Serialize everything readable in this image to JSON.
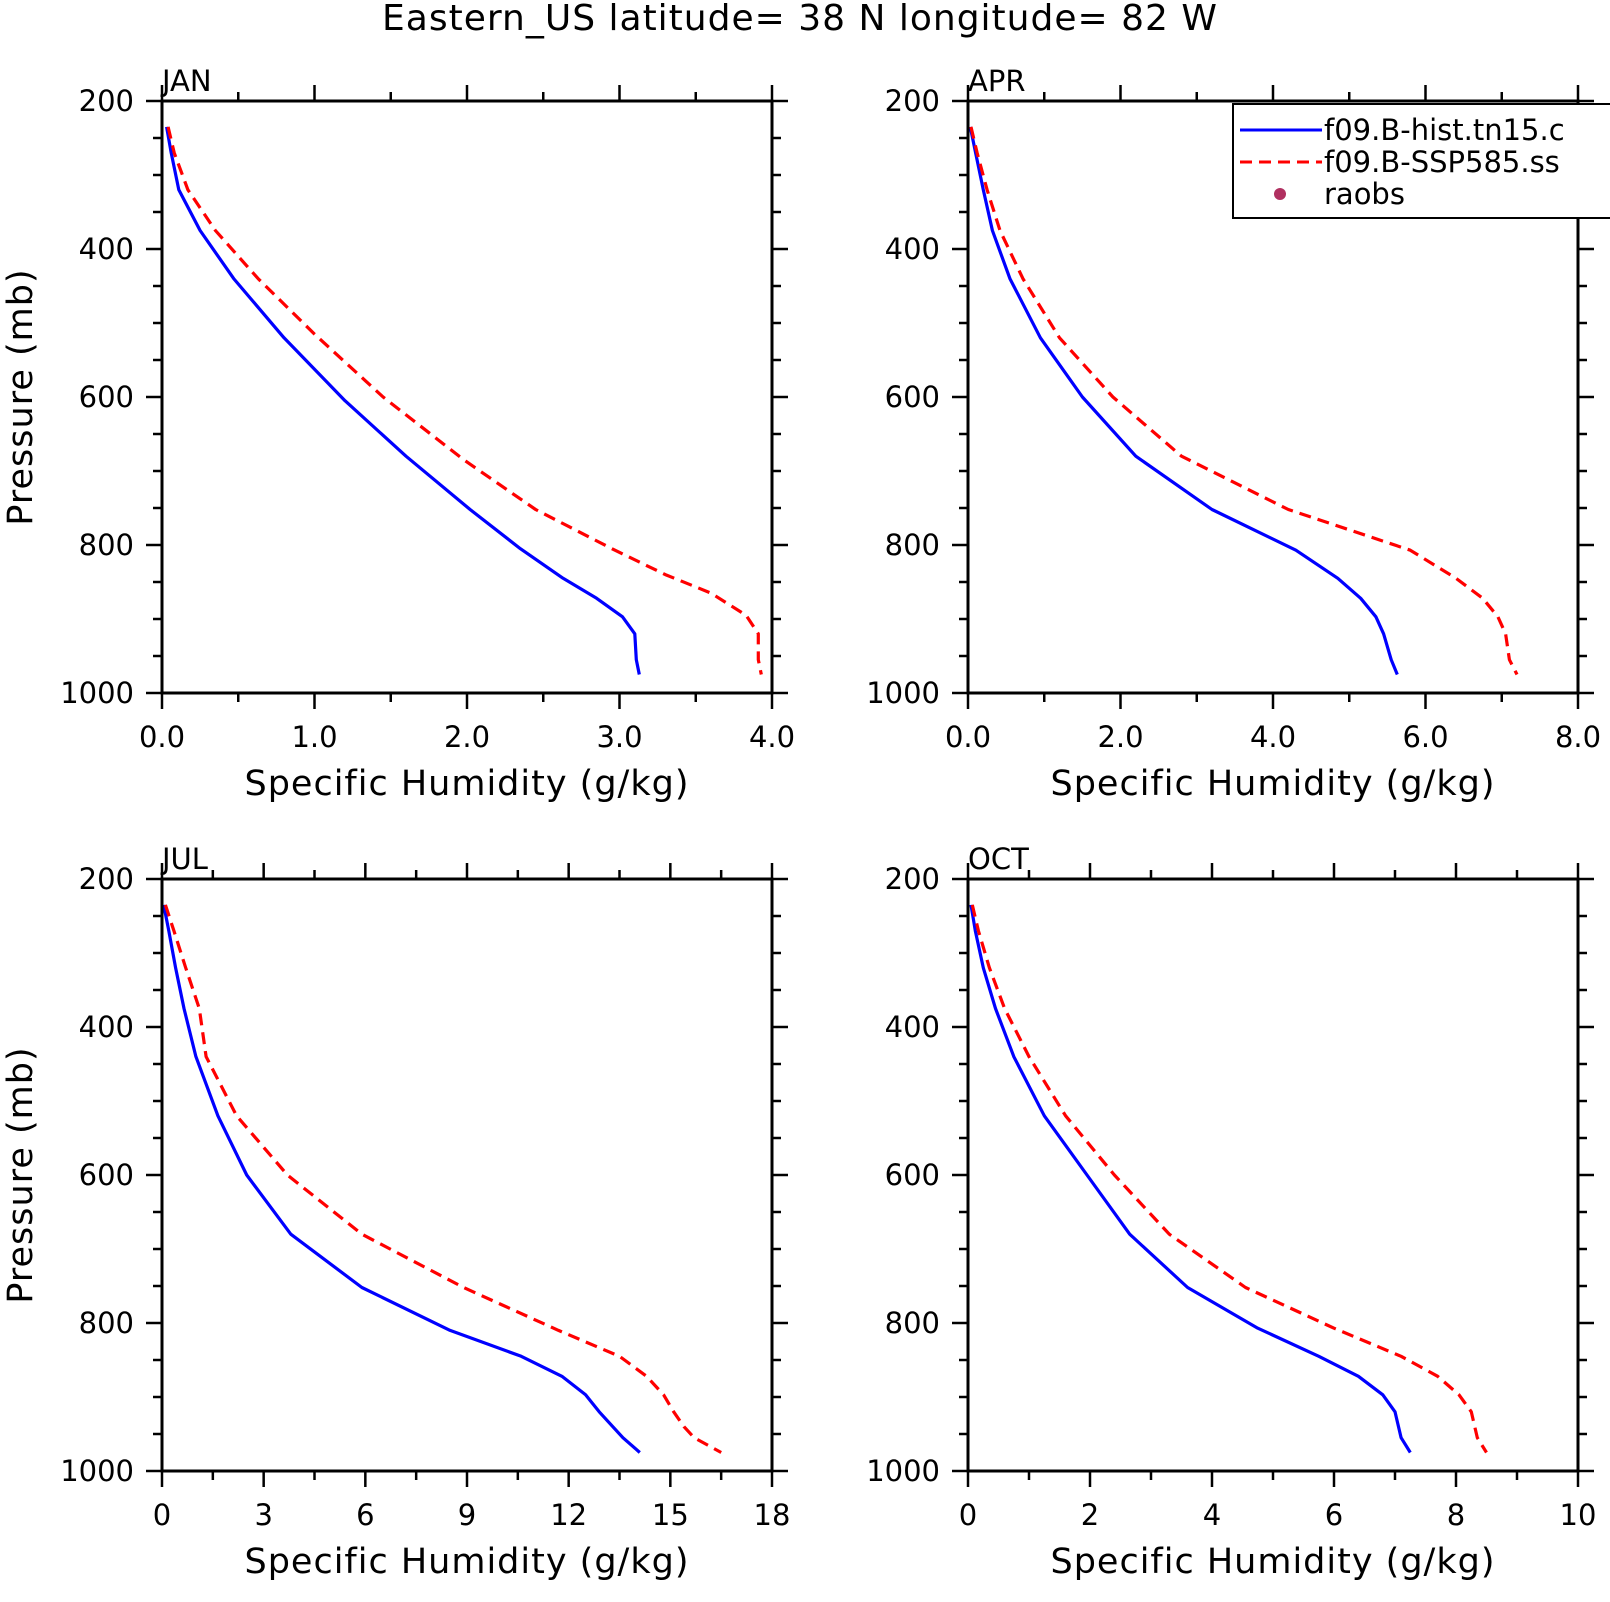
{
  "figure_title": "Eastern_US  latitude= 38 N longitude= 82 W",
  "legend": {
    "entries": [
      {
        "label": "f09.B-hist.tn15.c",
        "style": "solid",
        "color": "#0000ff"
      },
      {
        "label": "f09.B-SSP585.ss",
        "style": "dashed",
        "color": "#ff0000"
      },
      {
        "label": "raobs",
        "style": "marker",
        "color": "#b03060"
      }
    ]
  },
  "chart_data": [
    {
      "type": "line",
      "title": "JAN",
      "xlabel": "Specific Humidity (g/kg)",
      "ylabel": "Pressure (mb)",
      "xlim": [
        0,
        4
      ],
      "ylim": [
        1000,
        200
      ],
      "y_inverted": true,
      "xticks": [
        0,
        1,
        2,
        3,
        4
      ],
      "xtick_labels": [
        "0.0",
        "1.0",
        "2.0",
        "3.0",
        "4.0"
      ],
      "yticks": [
        200,
        400,
        600,
        800,
        1000
      ],
      "ytick_labels": [
        "200",
        "400",
        "600",
        "800",
        "1000"
      ],
      "series": [
        {
          "name": "f09.B-hist.tn15.c",
          "color": "#0000ff",
          "style": "solid",
          "x": [
            0.03,
            0.06,
            0.11,
            0.25,
            0.47,
            0.8,
            1.2,
            1.6,
            2.02,
            2.35,
            2.63,
            2.85,
            3.02,
            3.1,
            3.11,
            3.13
          ],
          "y": [
            235,
            270,
            320,
            375,
            440,
            520,
            605,
            680,
            752,
            805,
            845,
            872,
            897,
            920,
            955,
            975
          ]
        },
        {
          "name": "f09.B-SSP585.ss",
          "color": "#ff0000",
          "style": "dashed",
          "x": [
            0.04,
            0.08,
            0.17,
            0.35,
            0.63,
            1.0,
            1.45,
            1.98,
            2.45,
            2.95,
            3.3,
            3.6,
            3.83,
            3.91,
            3.91,
            3.93
          ],
          "y": [
            235,
            270,
            320,
            375,
            440,
            515,
            600,
            685,
            752,
            805,
            840,
            865,
            895,
            920,
            955,
            975
          ]
        }
      ]
    },
    {
      "type": "line",
      "title": "APR",
      "xlabel": "Specific Humidity (g/kg)",
      "ylabel": "",
      "xlim": [
        0,
        8
      ],
      "ylim": [
        1000,
        200
      ],
      "y_inverted": true,
      "xticks": [
        0,
        2,
        4,
        6,
        8
      ],
      "xtick_labels": [
        "0.0",
        "2.0",
        "4.0",
        "6.0",
        "8.0"
      ],
      "yticks": [
        200,
        400,
        600,
        800,
        1000
      ],
      "ytick_labels": [
        "200",
        "400",
        "600",
        "800",
        "1000"
      ],
      "series": [
        {
          "name": "f09.B-hist.tn15.c",
          "color": "#0000ff",
          "style": "solid",
          "x": [
            0.03,
            0.1,
            0.2,
            0.32,
            0.55,
            0.95,
            1.5,
            2.2,
            3.2,
            4.3,
            4.85,
            5.15,
            5.35,
            5.45,
            5.55,
            5.63
          ],
          "y": [
            235,
            270,
            320,
            375,
            440,
            520,
            600,
            680,
            752,
            807,
            845,
            872,
            897,
            920,
            955,
            975
          ]
        },
        {
          "name": "f09.B-SSP585.ss",
          "color": "#ff0000",
          "style": "dashed",
          "x": [
            0.04,
            0.12,
            0.25,
            0.42,
            0.72,
            1.2,
            1.9,
            2.8,
            4.2,
            5.8,
            6.4,
            6.75,
            6.95,
            7.05,
            7.1,
            7.2
          ],
          "y": [
            235,
            270,
            320,
            375,
            440,
            520,
            600,
            680,
            752,
            807,
            845,
            872,
            897,
            920,
            955,
            975
          ]
        }
      ]
    },
    {
      "type": "line",
      "title": "JUL",
      "xlabel": "Specific Humidity (g/kg)",
      "ylabel": "Pressure (mb)",
      "xlim": [
        0,
        18
      ],
      "ylim": [
        1000,
        200
      ],
      "y_inverted": true,
      "xticks": [
        0,
        3,
        6,
        9,
        12,
        15,
        18
      ],
      "xtick_labels": [
        "0",
        "3",
        "6",
        "9",
        "12",
        "15",
        "18"
      ],
      "yticks": [
        200,
        400,
        600,
        800,
        1000
      ],
      "ytick_labels": [
        "200",
        "400",
        "600",
        "800",
        "1000"
      ],
      "series": [
        {
          "name": "f09.B-hist.tn15.c",
          "color": "#0000ff",
          "style": "solid",
          "x": [
            0.05,
            0.2,
            0.4,
            0.65,
            1.0,
            1.65,
            2.5,
            3.8,
            5.9,
            8.5,
            10.6,
            11.8,
            12.5,
            12.9,
            13.3,
            13.6,
            14.1
          ],
          "y": [
            235,
            270,
            320,
            375,
            440,
            520,
            600,
            680,
            752,
            810,
            845,
            872,
            897,
            920,
            940,
            955,
            975
          ]
        },
        {
          "name": "f09.B-SSP585.ss",
          "color": "#ff0000",
          "style": "dashed",
          "x": [
            0.1,
            0.35,
            0.7,
            1.1,
            1.3,
            2.2,
            3.7,
            5.9,
            8.9,
            11.7,
            13.5,
            14.3,
            14.8,
            15.1,
            15.4,
            15.7,
            16.5
          ],
          "y": [
            235,
            270,
            320,
            375,
            440,
            520,
            600,
            680,
            752,
            810,
            845,
            872,
            897,
            920,
            940,
            955,
            975
          ]
        }
      ]
    },
    {
      "type": "line",
      "title": "OCT",
      "xlabel": "Specific Humidity (g/kg)",
      "ylabel": "",
      "xlim": [
        0,
        10
      ],
      "ylim": [
        1000,
        200
      ],
      "y_inverted": true,
      "xticks": [
        0,
        2,
        4,
        6,
        8,
        10
      ],
      "xtick_labels": [
        "0",
        "2",
        "4",
        "6",
        "8",
        "10"
      ],
      "yticks": [
        200,
        400,
        600,
        800,
        1000
      ],
      "ytick_labels": [
        "200",
        "400",
        "600",
        "800",
        "1000"
      ],
      "series": [
        {
          "name": "f09.B-hist.tn15.c",
          "color": "#0000ff",
          "style": "solid",
          "x": [
            0.05,
            0.12,
            0.25,
            0.45,
            0.75,
            1.25,
            1.95,
            2.65,
            3.6,
            4.75,
            5.75,
            6.4,
            6.8,
            7.0,
            7.1,
            7.25
          ],
          "y": [
            235,
            270,
            320,
            375,
            440,
            520,
            600,
            680,
            752,
            807,
            845,
            872,
            897,
            920,
            955,
            975
          ]
        },
        {
          "name": "f09.B-SSP585.ss",
          "color": "#ff0000",
          "style": "dashed",
          "x": [
            0.07,
            0.17,
            0.35,
            0.6,
            1.0,
            1.6,
            2.4,
            3.3,
            4.55,
            6.0,
            7.1,
            7.7,
            8.05,
            8.25,
            8.35,
            8.5
          ],
          "y": [
            235,
            270,
            320,
            375,
            440,
            520,
            600,
            680,
            752,
            807,
            845,
            872,
            897,
            920,
            955,
            975
          ]
        }
      ]
    }
  ]
}
